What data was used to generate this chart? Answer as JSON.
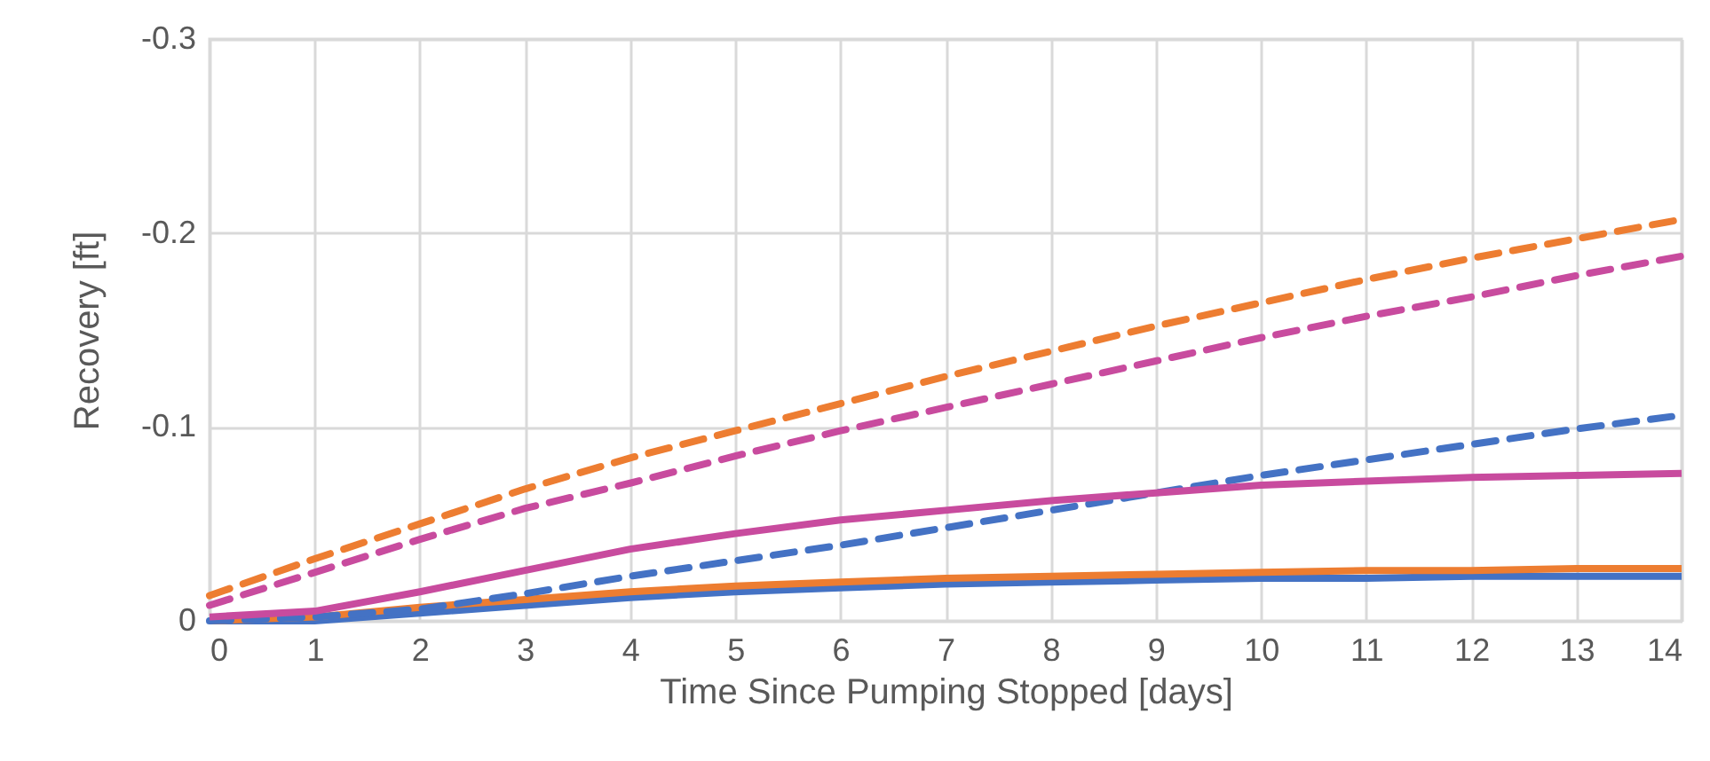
{
  "chart_data": {
    "type": "line",
    "xlabel": "Time Since Pumping Stopped [days]",
    "ylabel": "Recovery [ft]",
    "x": [
      0,
      1,
      2,
      3,
      4,
      5,
      6,
      7,
      8,
      9,
      10,
      11,
      12,
      13,
      14
    ],
    "series": [
      {
        "color": "#4472c4",
        "line_style": "solid",
        "values": [
          0,
          0,
          -0.004,
          -0.008,
          -0.012,
          -0.015,
          -0.017,
          -0.019,
          -0.02,
          -0.021,
          -0.022,
          -0.022,
          -0.023,
          -0.023,
          -0.023
        ]
      },
      {
        "color": "#ed7d31",
        "line_style": "solid",
        "values": [
          0,
          -0.002,
          -0.007,
          -0.011,
          -0.015,
          -0.018,
          -0.02,
          -0.022,
          -0.023,
          -0.024,
          -0.025,
          -0.026,
          -0.026,
          -0.027,
          -0.027
        ]
      },
      {
        "color": "#4472c4",
        "line_style": "dashed",
        "values": [
          0,
          -0.002,
          -0.006,
          -0.014,
          -0.023,
          -0.031,
          -0.039,
          -0.048,
          -0.057,
          -0.066,
          -0.075,
          -0.083,
          -0.091,
          -0.099,
          -0.106
        ]
      },
      {
        "color": "#c84b9e",
        "line_style": "solid",
        "values": [
          -0.002,
          -0.005,
          -0.015,
          -0.026,
          -0.037,
          -0.045,
          -0.052,
          -0.057,
          -0.062,
          -0.066,
          -0.07,
          -0.072,
          -0.074,
          -0.075,
          -0.076
        ]
      },
      {
        "color": "#ed7d31",
        "line_style": "dashed",
        "values": [
          -0.013,
          -0.032,
          -0.05,
          -0.068,
          -0.084,
          -0.098,
          -0.112,
          -0.126,
          -0.139,
          -0.152,
          -0.164,
          -0.176,
          -0.187,
          -0.197,
          -0.207
        ]
      },
      {
        "color": "#c84b9e",
        "line_style": "dashed",
        "values": [
          -0.008,
          -0.025,
          -0.042,
          -0.058,
          -0.071,
          -0.085,
          -0.098,
          -0.11,
          -0.122,
          -0.134,
          -0.146,
          -0.157,
          -0.167,
          -0.178,
          -0.188
        ]
      }
    ],
    "xlim": [
      0,
      14
    ],
    "xticks": [
      0,
      1,
      2,
      3,
      4,
      5,
      6,
      7,
      8,
      9,
      10,
      11,
      12,
      13,
      14
    ],
    "ylim": [
      0,
      -0.3
    ],
    "yticks": [
      0,
      -0.1,
      -0.2,
      -0.3
    ],
    "grid": true
  }
}
